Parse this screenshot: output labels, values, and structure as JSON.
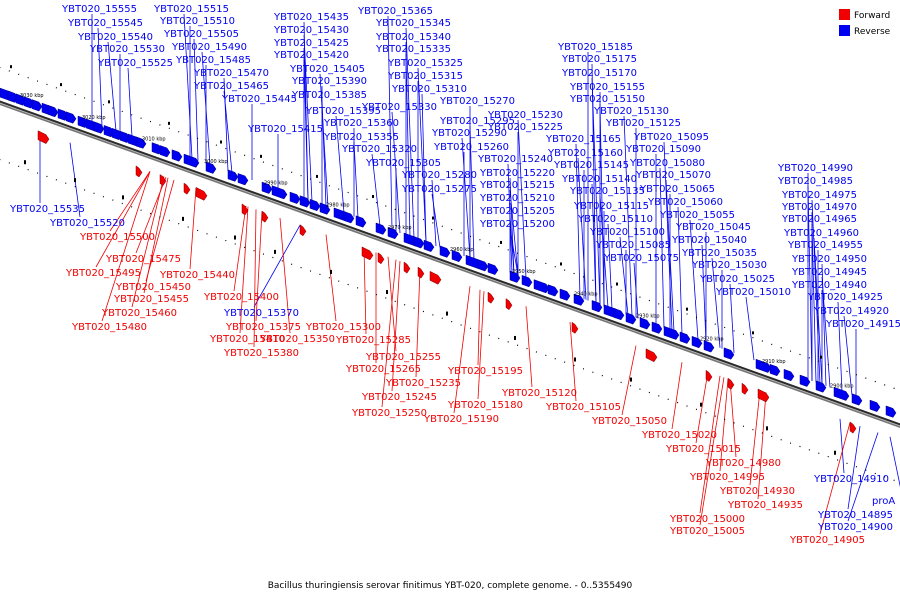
{
  "legend": {
    "forward": {
      "label": "Forward",
      "color": "#f00000"
    },
    "reverse": {
      "label": "Reverse",
      "color": "#0000f0"
    }
  },
  "caption": "Bacillus thuringiensis serovar finitimus YBT-020, complete genome. - 0..5355490",
  "ruler_ticks": [
    "3030 kbp",
    "3020 kbp",
    "3010 kbp",
    "3000 kbp",
    "2990 kbp",
    "2980 kbp",
    "2970 kbp",
    "2960 kbp",
    "2950 kbp",
    "2940 kbp",
    "2930 kbp",
    "2920 kbp",
    "2910 kbp",
    "2900 kbp"
  ],
  "reverse_labels_above": [
    "YBT020_15555",
    "YBT020_15545",
    "YBT020_15540",
    "YBT020_15530",
    "YBT020_15525",
    "YBT020_15515",
    "YBT020_15510",
    "YBT020_15505",
    "YBT020_15490",
    "YBT020_15485",
    "YBT020_15470",
    "YBT020_15465",
    "YBT020_15445",
    "YBT020_15435",
    "YBT020_15430",
    "YBT020_15425",
    "YBT020_15420",
    "YBT020_15405",
    "YBT020_15390",
    "YBT020_15385",
    "YBT020_15395",
    "YBT020_15415",
    "YBT020_15365",
    "YBT020_15345",
    "YBT020_15340",
    "YBT020_15335",
    "YBT020_15325",
    "YBT020_15315",
    "YBT020_15310",
    "YBT020_15330",
    "YBT020_15360",
    "YBT020_15355",
    "YBT020_15320",
    "YBT020_15305",
    "YBT020_15280",
    "YBT020_15275",
    "YBT020_15270",
    "YBT020_15295",
    "YBT020_15290",
    "YBT020_15260",
    "YBT020_15240",
    "YBT020_15230",
    "YBT020_15225",
    "YBT020_15220",
    "YBT020_15215",
    "YBT020_15210",
    "YBT020_15205",
    "YBT020_15200",
    "YBT020_15185",
    "YBT020_15175",
    "YBT020_15170",
    "YBT020_15155",
    "YBT020_15150",
    "YBT020_15130",
    "YBT020_15125",
    "YBT020_15165",
    "YBT020_15160",
    "YBT020_15145",
    "YBT020_15140",
    "YBT020_15135",
    "YBT020_15115",
    "YBT020_15110",
    "YBT020_15100",
    "YBT020_15085",
    "YBT020_15075",
    "YBT020_15095",
    "YBT020_15090",
    "YBT020_15080",
    "YBT020_15070",
    "YBT020_15065",
    "YBT020_15060",
    "YBT020_15055",
    "YBT020_15045",
    "YBT020_15040",
    "YBT020_15035",
    "YBT020_15030",
    "YBT020_15025",
    "YBT020_15010",
    "YBT020_14990",
    "YBT020_14985",
    "YBT020_14975",
    "YBT020_14970",
    "YBT020_14965",
    "YBT020_14960",
    "YBT020_14955",
    "YBT020_14950",
    "YBT020_14945",
    "YBT020_14940",
    "YBT020_14925",
    "YBT020_14920",
    "YBT020_14915"
  ],
  "reverse_labels_below": [
    "YBT020_15535",
    "YBT020_15520",
    "YBT020_15370",
    "YBT020_14910",
    "YBT020_14895",
    "YBT020_14900",
    "proA"
  ],
  "forward_labels": [
    "YBT020_15500",
    "YBT020_15475",
    "YBT020_15495",
    "YBT020_15440",
    "YBT020_15450",
    "YBT020_15455",
    "YBT020_15460",
    "YBT020_15480",
    "YBT020_15400",
    "YBT020_15375",
    "YBT020_15410",
    "YBT020_15350",
    "YBT020_15380",
    "YBT020_15300",
    "YBT020_15285",
    "YBT020_15255",
    "YBT020_15265",
    "YBT020_15235",
    "YBT020_15245",
    "YBT020_15250",
    "YBT020_15195",
    "YBT020_15180",
    "YBT020_15190",
    "YBT020_15120",
    "YBT020_15105",
    "YBT020_15050",
    "YBT020_15020",
    "YBT020_15015",
    "YBT020_14980",
    "YBT020_14995",
    "YBT020_14930",
    "YBT020_14935",
    "YBT020_15000",
    "YBT020_15005",
    "YBT020_14905"
  ]
}
